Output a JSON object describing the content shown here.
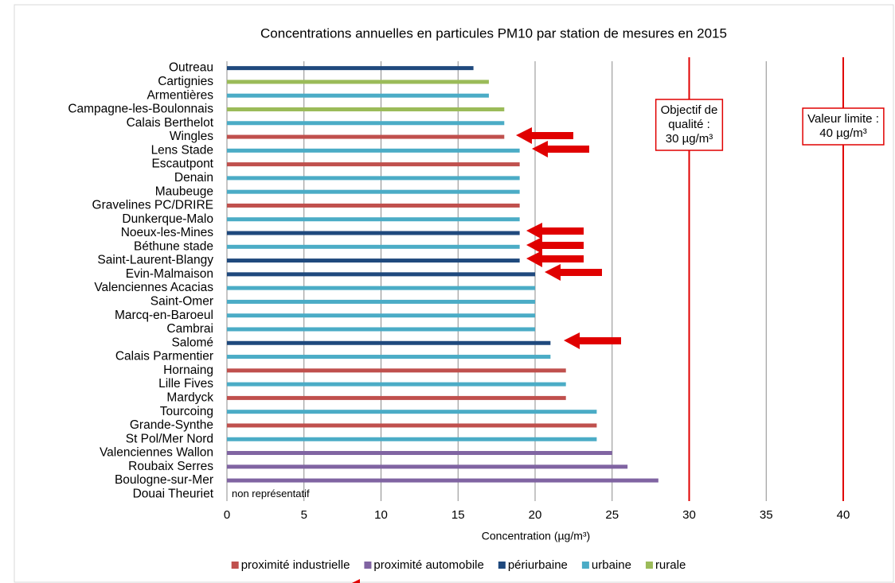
{
  "chart_data": {
    "type": "bar",
    "orientation": "horizontal",
    "title": "Concentrations annuelles en particules PM10 par station de mesures en 2015",
    "xlabel": "Concentration (µg/m³)",
    "categories": [
      "Outreau",
      "Cartignies",
      "Armentières",
      "Campagne-les-Boulonnais",
      "Calais Berthelot",
      "Wingles",
      "Lens Stade",
      "Escautpont",
      "Denain",
      "Maubeuge",
      "Gravelines PC/DRIRE",
      "Dunkerque-Malo",
      "Noeux-les-Mines",
      "Béthune stade",
      "Saint-Laurent-Blangy",
      "Evin-Malmaison",
      "Valenciennes Acacias",
      "Saint-Omer",
      "Marcq-en-Baroeul",
      "Cambrai",
      "Salomé",
      "Calais Parmentier",
      "Hornaing",
      "Lille Fives",
      "Mardyck",
      "Tourcoing",
      "Grande-Synthe",
      "St Pol/Mer Nord",
      "Valenciennes Wallon",
      "Roubaix Serres",
      "Boulogne-sur-Mer",
      "Douai Theuriet"
    ],
    "series": [
      {
        "name": "proximité industrielle",
        "color": "#c0504d",
        "values": [
          null,
          null,
          null,
          null,
          null,
          18,
          null,
          19,
          null,
          null,
          19,
          null,
          null,
          null,
          null,
          null,
          null,
          null,
          null,
          null,
          null,
          null,
          22,
          null,
          22,
          null,
          24,
          null,
          null,
          null,
          null,
          null
        ]
      },
      {
        "name": "proximité automobile",
        "color": "#8064a2",
        "values": [
          null,
          null,
          null,
          null,
          null,
          null,
          null,
          null,
          null,
          null,
          null,
          null,
          null,
          null,
          null,
          null,
          null,
          null,
          null,
          null,
          null,
          null,
          null,
          null,
          null,
          null,
          null,
          null,
          25,
          26,
          28,
          null
        ]
      },
      {
        "name": "périurbaine",
        "color": "#1f497d",
        "values": [
          16,
          null,
          null,
          null,
          null,
          null,
          null,
          null,
          null,
          null,
          null,
          null,
          19,
          null,
          19,
          20,
          null,
          null,
          null,
          null,
          21,
          null,
          null,
          null,
          null,
          null,
          null,
          null,
          null,
          null,
          null,
          null
        ]
      },
      {
        "name": "urbaine",
        "color": "#4bacc6",
        "values": [
          null,
          null,
          17,
          null,
          18,
          null,
          19,
          null,
          19,
          19,
          null,
          19,
          null,
          19,
          null,
          null,
          20,
          20,
          20,
          20,
          null,
          21,
          null,
          22,
          null,
          24,
          null,
          24,
          null,
          null,
          null,
          null
        ]
      },
      {
        "name": "rurale",
        "color": "#9bbb59",
        "values": [
          null,
          17,
          null,
          18,
          null,
          null,
          null,
          null,
          null,
          null,
          null,
          null,
          null,
          null,
          null,
          null,
          null,
          null,
          null,
          null,
          null,
          null,
          null,
          null,
          null,
          null,
          null,
          null,
          null,
          null,
          null,
          null
        ]
      }
    ],
    "xlim": [
      0,
      40
    ],
    "xticks": [
      0,
      5,
      10,
      15,
      20,
      25,
      30,
      35,
      40
    ],
    "grid": true,
    "legend": "bottom",
    "note": "non représentatif",
    "reference_lines": [
      {
        "value": 30,
        "color": "#e00000",
        "lines": [
          "Objectif de",
          "qualité :",
          "30 µg/m³"
        ]
      },
      {
        "value": 40,
        "color": "#e00000",
        "lines": [
          "Valeur limite :",
          "40 µg/m³"
        ]
      }
    ]
  }
}
